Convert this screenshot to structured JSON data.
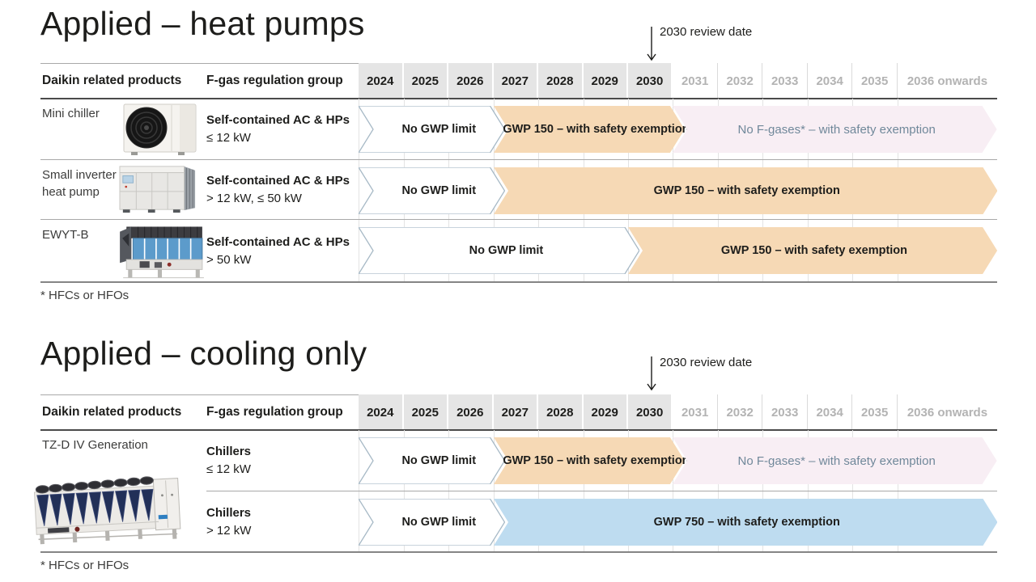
{
  "page": {
    "background": "#ffffff"
  },
  "colors": {
    "title_text": "#1d1d1b",
    "orange_fill": "#f6d9b5",
    "blue_fill": "#bedcf0",
    "pink_fill": "#f8eef4",
    "pink_text": "#70889a",
    "white_fill": "#ffffff",
    "white_arrow_border": "#a7b9c6",
    "active_year_bg": "#e5e5e5",
    "inactive_year_text": "#b3b3b3",
    "gridline": "#e3e3e3"
  },
  "sections": [
    {
      "title": "Applied – heat pumps",
      "review_annotation": "2030 review date",
      "footnote": "* HFCs or HFOs",
      "header": {
        "products": "Daikin related products",
        "group": "F-gas regulation group"
      },
      "years": [
        "2024",
        "2025",
        "2026",
        "2027",
        "2028",
        "2029",
        "2030",
        "2031",
        "2032",
        "2033",
        "2034",
        "2035",
        "2036 onwards"
      ],
      "active_year_count": 7,
      "rows": [
        {
          "product": "Mini chiller",
          "image": "mini-chiller",
          "group": {
            "title": "Self-contained AC & HPs",
            "subtitle": "≤ 12 kW"
          },
          "segments": [
            {
              "label": "No GWP limit",
              "style": "white",
              "from": 0,
              "to": 3
            },
            {
              "label": "GWP 150 – with safety exemption",
              "style": "orange",
              "from": 3,
              "to": 7
            },
            {
              "label": "No F-gases* – with safety exemption",
              "style": "pink",
              "from": 7,
              "to": 13,
              "final": true
            }
          ]
        },
        {
          "product": "Small inverter heat pump",
          "image": "heat-pump",
          "group": {
            "title": "Self-contained AC & HPs",
            "subtitle": "> 12 kW, ≤ 50 kW"
          },
          "segments": [
            {
              "label": "No GWP limit",
              "style": "white",
              "from": 0,
              "to": 3
            },
            {
              "label": "GWP 150 – with safety exemption",
              "style": "orange",
              "from": 3,
              "to": 13,
              "final": true
            }
          ]
        },
        {
          "product": "EWYT-B",
          "image": "ewyt-b",
          "group": {
            "title": "Self-contained AC & HPs",
            "subtitle": "> 50 kW"
          },
          "segments": [
            {
              "label": "No GWP limit",
              "style": "white",
              "from": 0,
              "to": 6
            },
            {
              "label": "GWP 150 – with safety exemption",
              "style": "orange",
              "from": 6,
              "to": 13,
              "final": true
            }
          ]
        }
      ]
    },
    {
      "title": "Applied – cooling only",
      "review_annotation": "2030 review date",
      "footnote": "* HFCs or HFOs",
      "header": {
        "products": "Daikin related products",
        "group": "F-gas regulation group"
      },
      "years": [
        "2024",
        "2025",
        "2026",
        "2027",
        "2028",
        "2029",
        "2030",
        "2031",
        "2032",
        "2033",
        "2034",
        "2035",
        "2036 onwards"
      ],
      "active_year_count": 7,
      "shared_product": {
        "label": "TZ-D IV Generation",
        "image": "tz-d-iv"
      },
      "rows": [
        {
          "group": {
            "title": "Chillers",
            "subtitle": "≤ 12 kW"
          },
          "segments": [
            {
              "label": "No GWP limit",
              "style": "white",
              "from": 0,
              "to": 3
            },
            {
              "label": "GWP 150 – with safety exemption",
              "style": "orange",
              "from": 3,
              "to": 7
            },
            {
              "label": "No F-gases* – with safety exemption",
              "style": "pink",
              "from": 7,
              "to": 13,
              "final": true
            }
          ]
        },
        {
          "group": {
            "title": "Chillers",
            "subtitle": "> 12 kW"
          },
          "segments": [
            {
              "label": "No GWP limit",
              "style": "white",
              "from": 0,
              "to": 3
            },
            {
              "label": "GWP 750 – with safety exemption",
              "style": "blue",
              "from": 3,
              "to": 13,
              "final": true
            }
          ]
        }
      ]
    }
  ]
}
